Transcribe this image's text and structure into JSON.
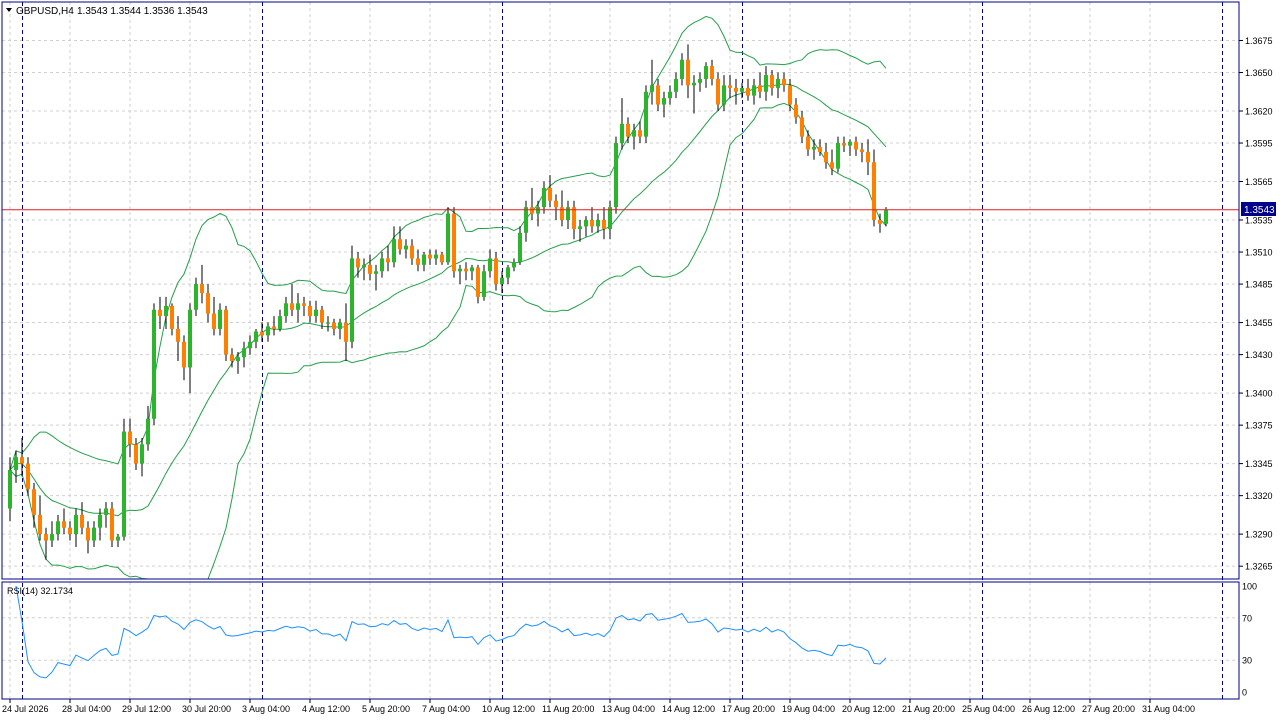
{
  "header": {
    "symbol": "GBPUSD,H4",
    "ohlc": "1.3543 1.3544 1.3536 1.3543"
  },
  "price_tag": "1.3543",
  "rsi": {
    "label": "RSI(14) 32.1734",
    "levels": [
      100,
      70,
      30,
      0
    ]
  },
  "colors": {
    "bull": "#2cb52c",
    "bear": "#ff7f00",
    "band": "#22a04a",
    "rsi_line": "#1e90ff",
    "grid": "#d0d0d0",
    "period_sep": "#00008b",
    "price_line": "#e02020",
    "frame": "#00008b",
    "price_tag_bg": "#00008b"
  },
  "chart_data": [
    {
      "type": "candlestick",
      "title": "",
      "ylim": [
        1.3255,
        1.3705
      ],
      "y_ticks": [
        "1.3675",
        "1.3650",
        "1.3620",
        "1.3595",
        "1.3565",
        "1.3535",
        "1.3510",
        "1.3485",
        "1.3455",
        "1.3430",
        "1.3400",
        "1.3375",
        "1.3345",
        "1.3320",
        "1.3290",
        "1.3265"
      ],
      "x_ticks": [
        "24 Jul 2026",
        "28 Jul 04:00",
        "29 Jul 12:00",
        "30 Jul 20:00",
        "3 Aug 04:00",
        "4 Aug 12:00",
        "5 Aug 20:00",
        "7 Aug 04:00",
        "10 Aug 12:00",
        "11 Aug 20:00",
        "13 Aug 04:00",
        "14 Aug 12:00",
        "17 Aug 20:00",
        "19 Aug 04:00",
        "20 Aug 12:00",
        "21 Aug 20:00",
        "25 Aug 04:00",
        "26 Aug 12:00",
        "27 Aug 20:00",
        "31 Aug 04:00"
      ],
      "period_separators": [
        2,
        42,
        82,
        122,
        162,
        202
      ],
      "current_price": 1.3543,
      "bollinger": {
        "period": 20,
        "deviation": 2
      },
      "ohlc": [
        [
          1.331,
          1.335,
          1.33,
          1.334
        ],
        [
          1.334,
          1.3355,
          1.333,
          1.335
        ],
        [
          1.335,
          1.3365,
          1.3335,
          1.3345
        ],
        [
          1.3345,
          1.335,
          1.332,
          1.3325
        ],
        [
          1.3325,
          1.333,
          1.3295,
          1.3305
        ],
        [
          1.3305,
          1.332,
          1.3285,
          1.329
        ],
        [
          1.329,
          1.3295,
          1.327,
          1.3285
        ],
        [
          1.3285,
          1.33,
          1.328,
          1.329
        ],
        [
          1.329,
          1.3305,
          1.3285,
          1.33
        ],
        [
          1.33,
          1.331,
          1.329,
          1.3295
        ],
        [
          1.3295,
          1.33,
          1.3285,
          1.329
        ],
        [
          1.329,
          1.331,
          1.328,
          1.3305
        ],
        [
          1.3305,
          1.3315,
          1.329,
          1.3295
        ],
        [
          1.3295,
          1.33,
          1.3275,
          1.3285
        ],
        [
          1.3285,
          1.33,
          1.328,
          1.3295
        ],
        [
          1.3295,
          1.331,
          1.3285,
          1.3305
        ],
        [
          1.3305,
          1.3315,
          1.3295,
          1.331
        ],
        [
          1.331,
          1.3315,
          1.328,
          1.3285
        ],
        [
          1.3285,
          1.329,
          1.328,
          1.3288
        ],
        [
          1.3288,
          1.338,
          1.3285,
          1.337
        ],
        [
          1.337,
          1.338,
          1.335,
          1.336
        ],
        [
          1.336,
          1.3365,
          1.334,
          1.3345
        ],
        [
          1.3345,
          1.3365,
          1.3335,
          1.336
        ],
        [
          1.336,
          1.339,
          1.3355,
          1.338
        ],
        [
          1.338,
          1.347,
          1.3375,
          1.3465
        ],
        [
          1.3465,
          1.3475,
          1.345,
          1.346
        ],
        [
          1.346,
          1.3475,
          1.345,
          1.3468
        ],
        [
          1.3468,
          1.347,
          1.3445,
          1.345
        ],
        [
          1.345,
          1.346,
          1.3425,
          1.344
        ],
        [
          1.344,
          1.3445,
          1.341,
          1.342
        ],
        [
          1.342,
          1.347,
          1.34,
          1.3465
        ],
        [
          1.3465,
          1.349,
          1.346,
          1.3485
        ],
        [
          1.3485,
          1.35,
          1.347,
          1.3478
        ],
        [
          1.3478,
          1.3485,
          1.3455,
          1.3462
        ],
        [
          1.3462,
          1.3475,
          1.3445,
          1.345
        ],
        [
          1.345,
          1.347,
          1.3445,
          1.3465
        ],
        [
          1.3465,
          1.3468,
          1.3425,
          1.343
        ],
        [
          1.343,
          1.3435,
          1.342,
          1.3425
        ],
        [
          1.3425,
          1.3432,
          1.3415,
          1.3428
        ],
        [
          1.3428,
          1.344,
          1.342,
          1.3435
        ],
        [
          1.3435,
          1.3445,
          1.343,
          1.344
        ],
        [
          1.344,
          1.345,
          1.3435,
          1.3448
        ],
        [
          1.3448,
          1.3455,
          1.344,
          1.3445
        ],
        [
          1.3445,
          1.3455,
          1.344,
          1.3452
        ],
        [
          1.3452,
          1.346,
          1.3445,
          1.345
        ],
        [
          1.345,
          1.3465,
          1.3448,
          1.346
        ],
        [
          1.346,
          1.3475,
          1.3455,
          1.347
        ],
        [
          1.347,
          1.3485,
          1.346,
          1.3465
        ],
        [
          1.3465,
          1.3478,
          1.3455,
          1.347
        ],
        [
          1.347,
          1.3475,
          1.346,
          1.3468
        ],
        [
          1.3468,
          1.3472,
          1.3455,
          1.346
        ],
        [
          1.346,
          1.3472,
          1.3455,
          1.3465
        ],
        [
          1.3465,
          1.3468,
          1.345,
          1.3455
        ],
        [
          1.3455,
          1.346,
          1.3448,
          1.3455
        ],
        [
          1.3455,
          1.3458,
          1.3445,
          1.345
        ],
        [
          1.345,
          1.3458,
          1.3442,
          1.3455
        ],
        [
          1.3455,
          1.347,
          1.3425,
          1.344
        ],
        [
          1.344,
          1.3515,
          1.3435,
          1.3505
        ],
        [
          1.3505,
          1.351,
          1.349,
          1.3498
        ],
        [
          1.3498,
          1.3505,
          1.3488,
          1.35
        ],
        [
          1.35,
          1.3508,
          1.3488,
          1.3493
        ],
        [
          1.3493,
          1.35,
          1.348,
          1.3495
        ],
        [
          1.3495,
          1.351,
          1.349,
          1.3505
        ],
        [
          1.3505,
          1.3515,
          1.3495,
          1.3502
        ],
        [
          1.3502,
          1.353,
          1.3498,
          1.352
        ],
        [
          1.352,
          1.353,
          1.3508,
          1.3512
        ],
        [
          1.3512,
          1.352,
          1.3505,
          1.3515
        ],
        [
          1.3515,
          1.352,
          1.35,
          1.3505
        ],
        [
          1.3505,
          1.3512,
          1.3495,
          1.35
        ],
        [
          1.35,
          1.351,
          1.3495,
          1.3508
        ],
        [
          1.3508,
          1.3512,
          1.35,
          1.3505
        ],
        [
          1.3505,
          1.3512,
          1.35,
          1.3508
        ],
        [
          1.3508,
          1.351,
          1.35,
          1.3502
        ],
        [
          1.3502,
          1.3545,
          1.35,
          1.354
        ],
        [
          1.354,
          1.3545,
          1.349,
          1.3495
        ],
        [
          1.3495,
          1.35,
          1.3485,
          1.3497
        ],
        [
          1.3497,
          1.3502,
          1.3488,
          1.3495
        ],
        [
          1.3495,
          1.35,
          1.3488,
          1.3498
        ],
        [
          1.3498,
          1.35,
          1.347,
          1.3475
        ],
        [
          1.3475,
          1.35,
          1.3472,
          1.3495
        ],
        [
          1.3495,
          1.3512,
          1.349,
          1.3505
        ],
        [
          1.3505,
          1.351,
          1.348,
          1.3485
        ],
        [
          1.3485,
          1.3495,
          1.3478,
          1.349
        ],
        [
          1.349,
          1.35,
          1.3485,
          1.3498
        ],
        [
          1.3498,
          1.3505,
          1.3495,
          1.3502
        ],
        [
          1.3502,
          1.353,
          1.35,
          1.3525
        ],
        [
          1.3525,
          1.355,
          1.3518,
          1.3545
        ],
        [
          1.3545,
          1.356,
          1.3535,
          1.354
        ],
        [
          1.354,
          1.355,
          1.353,
          1.3545
        ],
        [
          1.3545,
          1.3565,
          1.354,
          1.356
        ],
        [
          1.356,
          1.357,
          1.3545,
          1.355
        ],
        [
          1.355,
          1.3555,
          1.3535,
          1.3545
        ],
        [
          1.3545,
          1.3558,
          1.353,
          1.3535
        ],
        [
          1.3535,
          1.355,
          1.3528,
          1.3545
        ],
        [
          1.3545,
          1.355,
          1.352,
          1.3528
        ],
        [
          1.3528,
          1.3535,
          1.3518,
          1.353
        ],
        [
          1.353,
          1.3538,
          1.3522,
          1.3535
        ],
        [
          1.3535,
          1.3545,
          1.3525,
          1.353
        ],
        [
          1.353,
          1.354,
          1.3525,
          1.3535
        ],
        [
          1.3535,
          1.3545,
          1.352,
          1.3528
        ],
        [
          1.3528,
          1.355,
          1.352,
          1.3545
        ],
        [
          1.3545,
          1.36,
          1.354,
          1.3595
        ],
        [
          1.3595,
          1.363,
          1.359,
          1.361
        ],
        [
          1.361,
          1.3615,
          1.3595,
          1.36
        ],
        [
          1.36,
          1.361,
          1.359,
          1.3605
        ],
        [
          1.3605,
          1.3612,
          1.3595,
          1.36
        ],
        [
          1.36,
          1.364,
          1.3595,
          1.3635
        ],
        [
          1.3635,
          1.366,
          1.3625,
          1.364
        ],
        [
          1.364,
          1.3645,
          1.362,
          1.3625
        ],
        [
          1.3625,
          1.3635,
          1.3615,
          1.363
        ],
        [
          1.363,
          1.364,
          1.3625,
          1.3635
        ],
        [
          1.3635,
          1.365,
          1.363,
          1.3645
        ],
        [
          1.3645,
          1.3665,
          1.364,
          1.366
        ],
        [
          1.366,
          1.3672,
          1.363,
          1.364
        ],
        [
          1.364,
          1.3648,
          1.3618,
          1.3642
        ],
        [
          1.3642,
          1.365,
          1.3635,
          1.3645
        ],
        [
          1.3645,
          1.3658,
          1.3638,
          1.3655
        ],
        [
          1.3655,
          1.366,
          1.364,
          1.3645
        ],
        [
          1.3645,
          1.365,
          1.362,
          1.3625
        ],
        [
          1.3625,
          1.3648,
          1.362,
          1.364
        ],
        [
          1.364,
          1.3648,
          1.363,
          1.3638
        ],
        [
          1.3638,
          1.3645,
          1.3625,
          1.3635
        ],
        [
          1.3635,
          1.3642,
          1.363,
          1.3638
        ],
        [
          1.3638,
          1.3645,
          1.3628,
          1.3632
        ],
        [
          1.3632,
          1.3645,
          1.3625,
          1.364
        ],
        [
          1.364,
          1.365,
          1.363,
          1.3635
        ],
        [
          1.3635,
          1.3655,
          1.3628,
          1.3648
        ],
        [
          1.3648,
          1.3652,
          1.3632,
          1.3638
        ],
        [
          1.3638,
          1.365,
          1.363,
          1.3645
        ],
        [
          1.3645,
          1.365,
          1.3635,
          1.364
        ],
        [
          1.364,
          1.3645,
          1.362,
          1.3625
        ],
        [
          1.3625,
          1.363,
          1.361,
          1.3615
        ],
        [
          1.3615,
          1.362,
          1.3595,
          1.36
        ],
        [
          1.36,
          1.3605,
          1.3585,
          1.359
        ],
        [
          1.359,
          1.3598,
          1.3582,
          1.3592
        ],
        [
          1.3592,
          1.3598,
          1.3585,
          1.3588
        ],
        [
          1.3588,
          1.3595,
          1.3575,
          1.358
        ],
        [
          1.358,
          1.359,
          1.357,
          1.3575
        ],
        [
          1.3575,
          1.36,
          1.3572,
          1.3595
        ],
        [
          1.3595,
          1.36,
          1.3588,
          1.3593
        ],
        [
          1.3593,
          1.3598,
          1.3585,
          1.3596
        ],
        [
          1.3596,
          1.36,
          1.3585,
          1.359
        ],
        [
          1.359,
          1.3595,
          1.358,
          1.3588
        ],
        [
          1.3588,
          1.3598,
          1.357,
          1.358
        ],
        [
          1.358,
          1.359,
          1.353,
          1.3535
        ],
        [
          1.3535,
          1.354,
          1.3525,
          1.3532
        ],
        [
          1.3532,
          1.3545,
          1.353,
          1.3543
        ]
      ]
    },
    {
      "type": "line",
      "title": "RSI(14) 32.1734",
      "ylim": [
        0,
        100
      ],
      "y_ticks": [
        100,
        70,
        30,
        0
      ],
      "last_value": 32.1734
    }
  ]
}
